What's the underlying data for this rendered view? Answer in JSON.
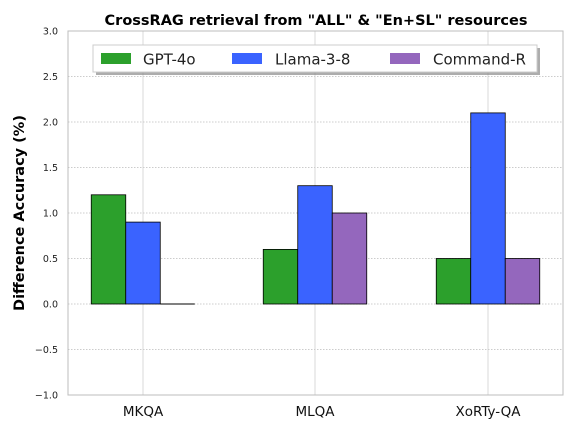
{
  "chart_data": {
    "type": "bar",
    "title": "CrossRAG retrieval from \"ALL\" & \"En+SL\" resources",
    "xlabel": "",
    "ylabel": "Difference Accuracy (%)",
    "categories": [
      "MKQA",
      "MLQA",
      "XoRTy-QA"
    ],
    "series": [
      {
        "name": "GPT-4o",
        "values": [
          1.2,
          0.6,
          0.5
        ],
        "color": "#2ca02c"
      },
      {
        "name": "Llama-3-8",
        "values": [
          0.9,
          1.3,
          2.1
        ],
        "color": "#3a63ff"
      },
      {
        "name": "Command-R",
        "values": [
          0.0,
          1.0,
          0.5
        ],
        "color": "#9467bd"
      }
    ],
    "ylim": [
      -1.0,
      3.0
    ],
    "yticks": [
      "−1.0",
      "−0.5",
      "0.0",
      "0.5",
      "1.0",
      "1.5",
      "2.0",
      "2.5",
      "3.0"
    ],
    "ytick_values": [
      -1.0,
      -0.5,
      0.0,
      0.5,
      1.0,
      1.5,
      2.0,
      2.5,
      3.0
    ],
    "grid": true,
    "legend_position": "top-center"
  }
}
